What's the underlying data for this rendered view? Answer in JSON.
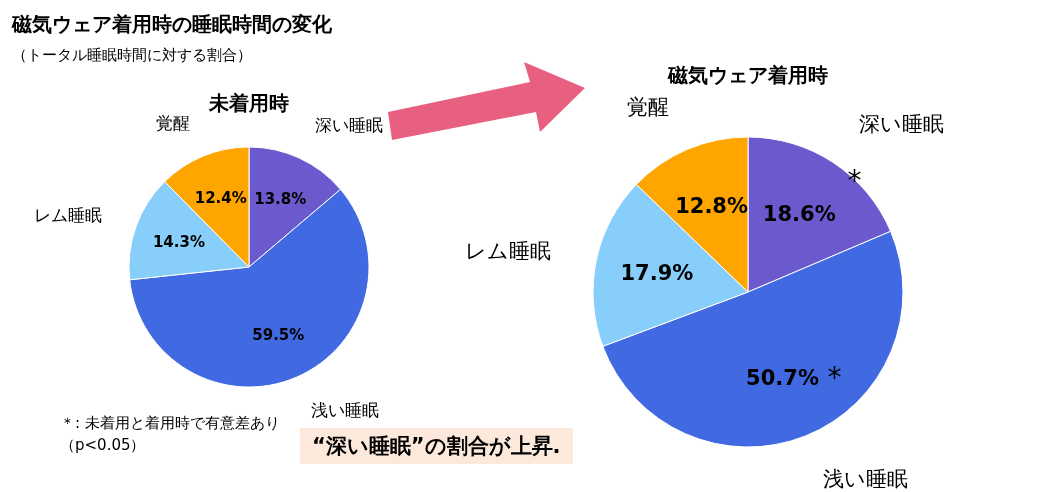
{
  "chart_data": [
    {
      "type": "pie",
      "title": "磁気ウェア着用時の睡眠時間の変化",
      "subtitle": "（トータル睡眠時間に対する割合）",
      "legend_title": "未着用時",
      "categories": [
        "深い睡眠",
        "浅い睡眠",
        "レム睡眠",
        "覚醒"
      ],
      "values": [
        13.8,
        59.5,
        14.3,
        12.4
      ],
      "value_labels": [
        "13.8%",
        "59.5%",
        "14.3%",
        "12.4%"
      ],
      "colors": [
        "#6a5acd",
        "#4169e1",
        "#87cefa",
        "#ffa500"
      ],
      "annotations": [
        "＊: 未着用と着用時で有意差あり（p<0.05）"
      ]
    },
    {
      "type": "pie",
      "title": "磁気ウェア着用時",
      "categories": [
        "深い睡眠",
        "浅い睡眠",
        "レム睡眠",
        "覚醒"
      ],
      "values": [
        18.6,
        50.7,
        17.9,
        12.8
      ],
      "value_labels": [
        "18.6%",
        "50.7%",
        "17.9%",
        "12.8%"
      ],
      "colors": [
        "#6a5acd",
        "#4169e1",
        "#87cefa",
        "#ffa500"
      ],
      "annotations": [
        {
          "text": "*",
          "x": "深い睡眠"
        },
        {
          "text": "*",
          "x": "浅い睡眠"
        },
        "“深い睡眠”の割合が上昇."
      ]
    }
  ]
}
